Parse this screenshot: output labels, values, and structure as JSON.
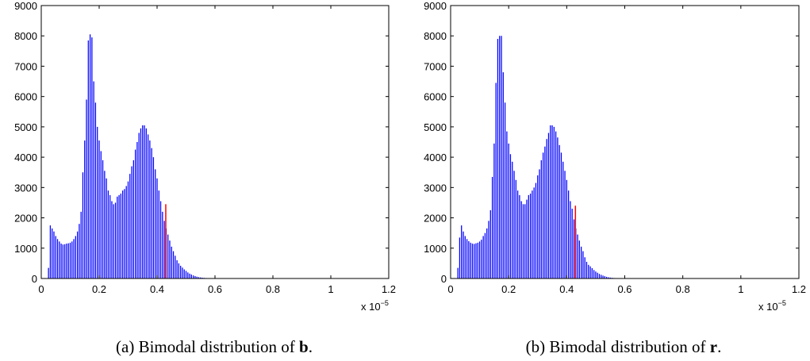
{
  "chart_data": [
    {
      "type": "bar",
      "caption_prefix": "(a) Bimodal distribution of ",
      "caption_bold": "b",
      "caption_suffix": ".",
      "x_multiplier_label": "x 10",
      "x_multiplier_exponent": "−5",
      "xlim": [
        0,
        1.2
      ],
      "ylim": [
        0,
        9000
      ],
      "xticks": [
        0,
        0.2,
        0.4,
        0.6,
        0.8,
        1,
        1.2
      ],
      "xtick_labels": [
        "0",
        "0.2",
        "0.4",
        "0.6",
        "0.8",
        "1",
        "1.2"
      ],
      "yticks": [
        0,
        1000,
        2000,
        3000,
        4000,
        5000,
        6000,
        7000,
        8000,
        9000
      ],
      "ytick_labels": [
        "0",
        "1000",
        "2000",
        "3000",
        "4000",
        "5000",
        "6000",
        "7000",
        "8000",
        "9000"
      ],
      "bar_color": "#0000ff",
      "marker_color": "#ff0000",
      "bin_start": 0.025,
      "bin_width": 0.00625,
      "values": [
        350,
        1750,
        1650,
        1550,
        1400,
        1300,
        1220,
        1150,
        1120,
        1130,
        1150,
        1160,
        1180,
        1220,
        1300,
        1400,
        1550,
        1800,
        2200,
        3500,
        4550,
        5900,
        7850,
        8050,
        7950,
        6500,
        5800,
        5000,
        4550,
        4200,
        3900,
        3550,
        3300,
        2900,
        2750,
        2550,
        2450,
        2500,
        2700,
        2750,
        2800,
        2900,
        2950,
        3050,
        3200,
        3450,
        3700,
        3900,
        4250,
        4500,
        4800,
        4950,
        5050,
        5050,
        4950,
        4750,
        4550,
        4300,
        4000,
        3600,
        3300,
        2900,
        2550,
        2200,
        1900,
        1650,
        1450,
        1250,
        1050,
        900,
        750,
        600,
        500,
        420,
        360,
        300,
        250,
        200,
        160,
        130,
        100,
        80,
        60,
        45,
        35,
        25,
        20,
        15,
        10,
        8,
        6,
        5
      ],
      "marker_x": 0.43,
      "marker_value": 2450
    },
    {
      "type": "bar",
      "caption_prefix": "(b) Bimodal distribution of ",
      "caption_bold": "r",
      "caption_suffix": ".",
      "x_multiplier_label": "x 10",
      "x_multiplier_exponent": "−5",
      "xlim": [
        0,
        1.2
      ],
      "ylim": [
        0,
        9000
      ],
      "xticks": [
        0,
        0.2,
        0.4,
        0.6,
        0.8,
        1,
        1.2
      ],
      "xtick_labels": [
        "0",
        "0.2",
        "0.4",
        "0.6",
        "0.8",
        "1",
        "1.2"
      ],
      "yticks": [
        0,
        1000,
        2000,
        3000,
        4000,
        5000,
        6000,
        7000,
        8000,
        9000
      ],
      "ytick_labels": [
        "0",
        "1000",
        "2000",
        "3000",
        "4000",
        "5000",
        "6000",
        "7000",
        "8000",
        "9000"
      ],
      "bar_color": "#0000ff",
      "marker_color": "#ff0000",
      "bin_start": 0.025,
      "bin_width": 0.00625,
      "values": [
        350,
        1350,
        1750,
        1550,
        1400,
        1300,
        1230,
        1180,
        1150,
        1140,
        1160,
        1180,
        1220,
        1280,
        1400,
        1500,
        1650,
        1900,
        2250,
        3350,
        4450,
        6450,
        7900,
        8000,
        8000,
        6800,
        5800,
        4850,
        4450,
        4100,
        3850,
        3550,
        3250,
        2900,
        2750,
        2550,
        2450,
        2450,
        2600,
        2750,
        2800,
        2900,
        3000,
        3150,
        3400,
        3600,
        3900,
        4150,
        4350,
        4600,
        4800,
        5050,
        5050,
        5000,
        4850,
        4650,
        4400,
        4150,
        3850,
        3550,
        3250,
        2900,
        2550,
        2300,
        1950,
        1650,
        1450,
        1250,
        1050,
        900,
        700,
        550,
        450,
        400,
        340,
        280,
        230,
        190,
        150,
        120,
        95,
        75,
        55,
        40,
        30,
        22,
        16,
        12,
        9,
        7,
        5,
        3
      ],
      "marker_x": 0.43,
      "marker_value": 2400
    }
  ]
}
